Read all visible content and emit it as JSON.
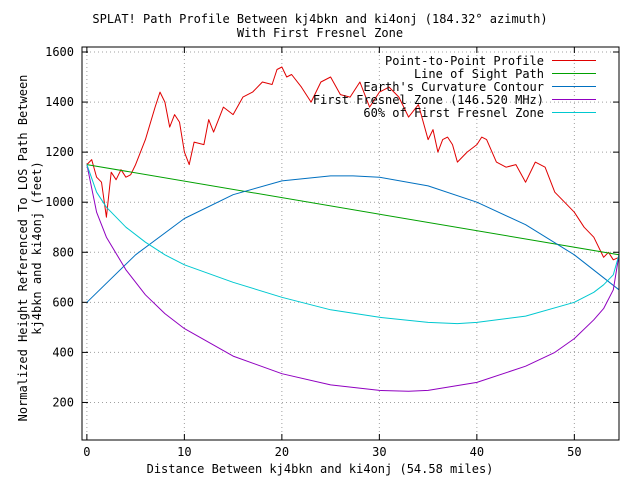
{
  "chart_data": {
    "type": "line",
    "title": "SPLAT! Path Profile Between kj4bkn and ki4onj (184.32° azimuth)",
    "subtitle": "With First Fresnel Zone",
    "xlabel": "Distance Between kj4bkn and ki4onj (54.58 miles)",
    "ylabel_line1": "Normalized Height Referenced To LOS Path Between",
    "ylabel_line2": "kj4bkn and ki4onj (feet)",
    "xlim": [
      -0.5,
      54.58
    ],
    "ylim": [
      50,
      1620
    ],
    "x_ticks": [
      0,
      10,
      20,
      30,
      40,
      50
    ],
    "x_tick_labels": [
      "0",
      "10",
      "20",
      "30",
      "40",
      "50"
    ],
    "y_ticks": [
      200,
      400,
      600,
      800,
      1000,
      1200,
      1400,
      1600
    ],
    "y_tick_labels": [
      "200",
      "400",
      "600",
      "800",
      "1000",
      "1200",
      "1400",
      "1600"
    ],
    "grid": true,
    "legend_position": "top-right",
    "series": [
      {
        "name": "Point-to-Point Profile",
        "color": "#e00000",
        "x": [
          0,
          0.5,
          1,
          1.5,
          2,
          2.5,
          3,
          3.5,
          4,
          4.5,
          5,
          6,
          7,
          7.5,
          8,
          8.5,
          9,
          9.5,
          10,
          10.5,
          11,
          12,
          12.5,
          13,
          14,
          15,
          16,
          17,
          18,
          19,
          19.5,
          20,
          20.5,
          21,
          22,
          23,
          24,
          25,
          26,
          27,
          28,
          29,
          30,
          31,
          32,
          33,
          34,
          35,
          35.5,
          36,
          36.5,
          37,
          37.5,
          38,
          39,
          40,
          40.5,
          41,
          42,
          43,
          44,
          45,
          46,
          47,
          48,
          49,
          50,
          51,
          52,
          53,
          53.5,
          54,
          54.58
        ],
        "values": [
          1150,
          1170,
          1100,
          1080,
          940,
          1120,
          1090,
          1130,
          1100,
          1110,
          1150,
          1250,
          1380,
          1440,
          1400,
          1300,
          1350,
          1320,
          1200,
          1150,
          1240,
          1230,
          1330,
          1280,
          1380,
          1350,
          1420,
          1440,
          1480,
          1470,
          1530,
          1540,
          1500,
          1510,
          1460,
          1400,
          1480,
          1500,
          1430,
          1420,
          1480,
          1380,
          1440,
          1460,
          1420,
          1340,
          1390,
          1250,
          1290,
          1200,
          1250,
          1260,
          1230,
          1160,
          1200,
          1230,
          1260,
          1250,
          1160,
          1140,
          1150,
          1080,
          1160,
          1140,
          1040,
          1000,
          960,
          900,
          860,
          780,
          800,
          770,
          780
        ]
      },
      {
        "name": "Line of Sight Path",
        "color": "#00a000",
        "x": [
          0,
          54.58
        ],
        "values": [
          1150,
          790
        ]
      },
      {
        "name": "Earth's Curvature Contour",
        "color": "#0070c0",
        "x": [
          0,
          5,
          10,
          15,
          20,
          25,
          27.3,
          30,
          35,
          40,
          45,
          50,
          54.58
        ],
        "values": [
          600,
          790,
          935,
          1030,
          1085,
          1105,
          1105,
          1100,
          1065,
          1000,
          910,
          790,
          650
        ]
      },
      {
        "name": "First Fresnel Zone (146.520 MHz)",
        "color": "#9000c0",
        "x": [
          0,
          1,
          2,
          4,
          6,
          8,
          10,
          15,
          20,
          25,
          30,
          33,
          35,
          40,
          45,
          48,
          50,
          52,
          53,
          54,
          54.58
        ],
        "values": [
          1150,
          960,
          860,
          730,
          630,
          555,
          495,
          385,
          315,
          270,
          248,
          245,
          248,
          280,
          345,
          400,
          455,
          530,
          575,
          650,
          790
        ]
      },
      {
        "name": "60% of First Fresnel Zone",
        "color": "#00c8d0",
        "x": [
          0,
          1,
          2,
          4,
          6,
          8,
          10,
          15,
          20,
          25,
          30,
          35,
          38,
          40,
          45,
          50,
          52,
          53,
          54,
          54.58
        ],
        "values": [
          1150,
          1040,
          980,
          900,
          840,
          790,
          750,
          680,
          620,
          570,
          540,
          520,
          515,
          520,
          545,
          600,
          640,
          670,
          710,
          790
        ]
      }
    ]
  }
}
